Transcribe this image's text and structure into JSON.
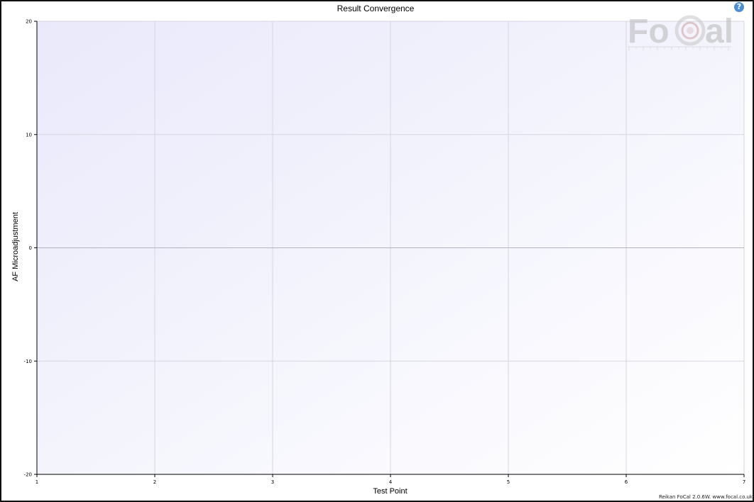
{
  "chart_data": {
    "type": "line",
    "title": "Result Convergence",
    "xlabel": "Test Point",
    "ylabel": "AF Microadjustment",
    "xlim": [
      1,
      7
    ],
    "ylim": [
      -20,
      20
    ],
    "x_ticks": [
      1,
      2,
      3,
      4,
      5,
      6,
      7
    ],
    "y_ticks": [
      20,
      10,
      0,
      -10,
      -20
    ],
    "grid": true,
    "series": []
  },
  "footer_text": "Reikan FoCal 2.0.6W. www.focal.co.uk",
  "logo_text": "FoCal",
  "help_icon": "question-circle-icon",
  "colors": {
    "plot_bg_start": "#e9e9fb",
    "plot_bg_end": "#ffffff",
    "grid": "#d6d6e0",
    "zero_line": "#b4b4c0",
    "help": "#4d8fd6"
  }
}
